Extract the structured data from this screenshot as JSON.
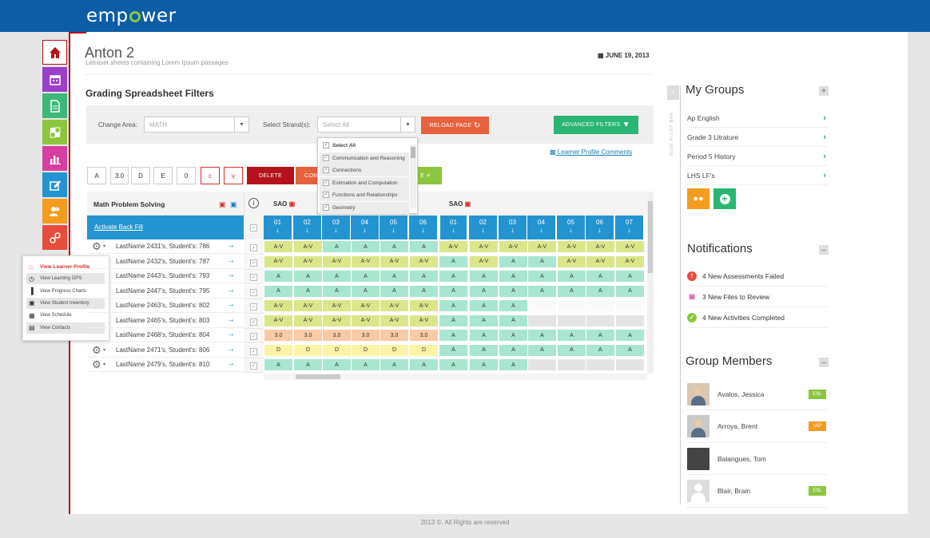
{
  "brand": {
    "logo_prefix": "emp",
    "logo_suffix": "wer"
  },
  "header": {
    "title": "Anton 2",
    "subtitle": "Letraset sheets containing Lorem Ipsum passages",
    "date": "JUNE 19, 2013"
  },
  "filters": {
    "title": "Grading Spreadsheet Filters",
    "change_area_label": "Change Area:",
    "change_area_value": "MATH",
    "strand_label": "Select Strand(s):",
    "strand_placeholder": "Select All",
    "reload_label": "RELOAD PAGE",
    "advanced_label": "ADVANCED FILTERS",
    "comments_link": "Learner Profile Comments"
  },
  "strand_dropdown": [
    {
      "label": "Select All",
      "checked": false,
      "bold": true
    },
    {
      "label": "Communication and Reasoning",
      "checked": true
    },
    {
      "label": "Connections",
      "checked": true
    },
    {
      "label": "Estimation and Computation",
      "checked": true
    },
    {
      "label": "Functions and Relationships",
      "checked": true
    },
    {
      "label": "Geometry",
      "checked": true
    }
  ],
  "grade_buttons": [
    "A",
    "3.0",
    "D",
    "E",
    "0",
    "c",
    "v"
  ],
  "action_buttons": {
    "delete": "DELETE",
    "comment": "COM",
    "save": "E"
  },
  "grid": {
    "section_title": "Math Problem Solving",
    "back_fill": "Activate Back Fill",
    "group1": "SAO",
    "group2": "SAO",
    "columns_g1": [
      "01",
      "02",
      "03",
      "04",
      "05",
      "06"
    ],
    "columns_g2": [
      "01",
      "02",
      "03",
      "04",
      "05",
      "06",
      "07"
    ],
    "students": [
      {
        "name": "LastName 2431's, Student's: 786",
        "g1": [
          "A-V",
          "A-V",
          "A",
          "A",
          "A",
          "A"
        ],
        "g2": [
          "A-V",
          "A-V",
          "A-V",
          "A-V",
          "A-V",
          "A-V",
          "A-V"
        ]
      },
      {
        "name": "LastName 2432's, Student's: 787",
        "g1": [
          "A-V",
          "A-V",
          "A-V",
          "A-V",
          "A-V",
          "A-V"
        ],
        "g2": [
          "A",
          "A-V",
          "A",
          "A",
          "A-V",
          "A-V",
          "A-V"
        ]
      },
      {
        "name": "LastName 2443's, Student's: 793",
        "g1": [
          "A",
          "A",
          "A",
          "A",
          "A",
          "A"
        ],
        "g2": [
          "A",
          "A",
          "A",
          "A",
          "A",
          "A",
          "A"
        ]
      },
      {
        "name": "LastName 2447's, Student's: 795",
        "g1": [
          "A",
          "A",
          "A",
          "A",
          "A",
          "A"
        ],
        "g2": [
          "A",
          "A",
          "A",
          "A",
          "A",
          "A",
          "A"
        ]
      },
      {
        "name": "LastName 2463's, Student's: 802",
        "g1": [
          "A-V",
          "A-V",
          "A-V",
          "A-V",
          "A-V",
          "A-V"
        ],
        "g2": [
          "A",
          "A",
          "A",
          "",
          "",
          "",
          ""
        ]
      },
      {
        "name": "LastName 2465's, Student's: 803",
        "g1": [
          "A-V",
          "A-V",
          "A-V",
          "A-V",
          "A-V",
          "A-V"
        ],
        "g2": [
          "A",
          "A",
          "A",
          "",
          "",
          "",
          ""
        ]
      },
      {
        "name": "LastName 2468's, Student's: 804",
        "g1": [
          "3.0",
          "3.0",
          "3.0",
          "3.0",
          "3.0",
          "3.0"
        ],
        "g2": [
          "A",
          "A",
          "A",
          "A",
          "A",
          "A",
          "A"
        ]
      },
      {
        "name": "LastName 2471's, Student's: 806",
        "g1": [
          "D",
          "D",
          "D",
          "D",
          "D",
          "D"
        ],
        "g2": [
          "A",
          "A",
          "A",
          "A",
          "A",
          "A",
          "A"
        ]
      },
      {
        "name": "LastName 2479's, Student's: 810",
        "g1": [
          "A",
          "A",
          "A",
          "A",
          "A",
          "A"
        ],
        "g2": [
          "A",
          "A",
          "A",
          "",
          "",
          "",
          ""
        ]
      }
    ]
  },
  "context_menu": [
    "View Learner Profile",
    "View Learning GPS",
    "View Progress Charts",
    "View Student Inventory",
    "View Schedule",
    "View Contacts"
  ],
  "right_bar_label": "HIDE RIGHT BAR",
  "groups": {
    "title": "My Groups",
    "items": [
      "Ap English",
      "Grade 3 Litrature",
      "Period 5 History",
      "LHS LF's"
    ]
  },
  "notifications": {
    "title": "Notifications",
    "items": [
      "4 New Assessments Failed",
      "3 New Files to Review",
      "4 New Activities Completed"
    ]
  },
  "members": {
    "title": "Group Members",
    "items": [
      {
        "name": "Avalos, Jessica",
        "badge": "ESL"
      },
      {
        "name": "Arroya, Brent",
        "badge": "IAP"
      },
      {
        "name": "Balangues, Tom",
        "badge": ""
      },
      {
        "name": "Blair, Brain",
        "badge": "ESL"
      }
    ]
  },
  "footer": "2013 ©. All Rights are reserved",
  "colors": {
    "primary": "#0d5da6",
    "accent_red": "#b5121b",
    "green": "#29b573",
    "grade_A": "#a8e6cf",
    "grade_AV": "#dbe68a",
    "grade_30": "#f9caa6",
    "grade_D": "#fbf3a6"
  }
}
